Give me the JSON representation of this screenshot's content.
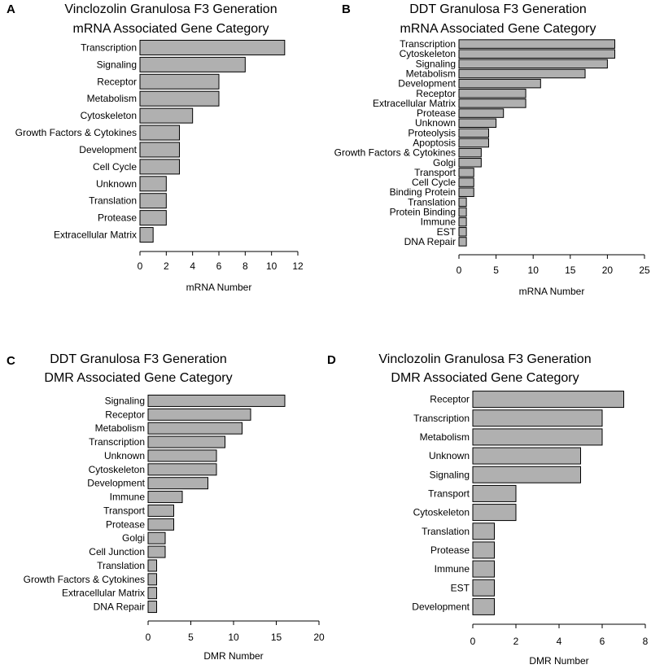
{
  "colors": {
    "bar_fill": "#b0b0b0",
    "bar_stroke": "#000000"
  },
  "chart_data": [
    {
      "type": "bar",
      "orientation": "horizontal",
      "panel": "A",
      "title": "Vinclozolin Granulosa F3 Generation",
      "subtitle": "mRNA Associated Gene Category",
      "categories": [
        "Transcription",
        "Signaling",
        "Receptor",
        "Metabolism",
        "Cytoskeleton",
        "Growth Factors & Cytokines",
        "Development",
        "Cell Cycle",
        "Unknown",
        "Translation",
        "Protease",
        "Extracellular Matrix"
      ],
      "values": [
        11,
        8,
        6,
        6,
        4,
        3,
        3,
        3,
        2,
        2,
        2,
        1
      ],
      "xlabel": "mRNA Number",
      "xlim": [
        0,
        12
      ],
      "xticks": [
        "0",
        "2",
        "4",
        "6",
        "8",
        "10",
        "12"
      ]
    },
    {
      "type": "bar",
      "orientation": "horizontal",
      "panel": "B",
      "title": "DDT Granulosa F3 Generation",
      "subtitle": "mRNA Associated Gene Category",
      "categories": [
        "Transcription",
        "Cytoskeleton",
        "Signaling",
        "Metabolism",
        "Development",
        "Receptor",
        "Extracellular Matrix",
        "Protease",
        "Unknown",
        "Proteolysis",
        "Apoptosis",
        "Growth Factors & Cytokines",
        "Golgi",
        "Transport",
        "Cell Cycle",
        "Binding Protein",
        "Translation",
        "Protein Binding",
        "Immune",
        "EST",
        "DNA Repair"
      ],
      "values": [
        21,
        21,
        20,
        17,
        11,
        9,
        9,
        6,
        5,
        4,
        4,
        3,
        3,
        2,
        2,
        2,
        1,
        1,
        1,
        1,
        1
      ],
      "xlabel": "mRNA Number",
      "xlim": [
        0,
        25
      ],
      "xticks": [
        "0",
        "5",
        "10",
        "15",
        "20",
        "25"
      ]
    },
    {
      "type": "bar",
      "orientation": "horizontal",
      "panel": "C",
      "title": "DDT Granulosa F3 Generation",
      "subtitle": "DMR Associated Gene Category",
      "categories": [
        "Signaling",
        "Receptor",
        "Metabolism",
        "Transcription",
        "Unknown",
        "Cytoskeleton",
        "Development",
        "Immune",
        "Transport",
        "Protease",
        "Golgi",
        "Cell Junction",
        "Translation",
        "Growth Factors & Cytokines",
        "Extracellular Matrix",
        "DNA Repair"
      ],
      "values": [
        16,
        12,
        11,
        9,
        8,
        8,
        7,
        4,
        3,
        3,
        2,
        2,
        1,
        1,
        1,
        1
      ],
      "xlabel": "DMR Number",
      "xlim": [
        0,
        20
      ],
      "xticks": [
        "0",
        "5",
        "10",
        "15",
        "20"
      ]
    },
    {
      "type": "bar",
      "orientation": "horizontal",
      "panel": "D",
      "title": "Vinclozolin Granulosa F3 Generation",
      "subtitle": "DMR Associated Gene Category",
      "categories": [
        "Receptor",
        "Transcription",
        "Metabolism",
        "Unknown",
        "Signaling",
        "Transport",
        "Cytoskeleton",
        "Translation",
        "Protease",
        "Immune",
        "EST",
        "Development"
      ],
      "values": [
        7,
        6,
        6,
        5,
        5,
        2,
        2,
        1,
        1,
        1,
        1,
        1
      ],
      "xlabel": "DMR Number",
      "xlim": [
        0,
        8
      ],
      "xticks": [
        "0",
        "2",
        "4",
        "6",
        "8"
      ]
    }
  ]
}
